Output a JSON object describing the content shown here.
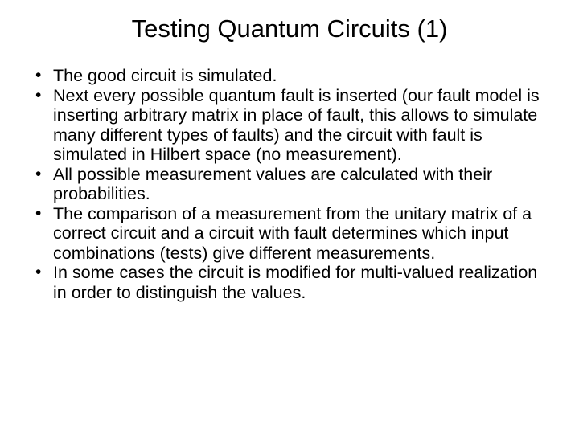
{
  "title": "Testing Quantum Circuits (1)",
  "bullets": [
    "The good circuit is simulated.",
    "Next every possible quantum fault is inserted (our fault model is inserting arbitrary matrix in place of fault, this allows to simulate many different types of faults) and the circuit with fault is simulated in Hilbert space (no measurement).",
    "All possible measurement values are calculated with their probabilities.",
    "The comparison of a measurement from the unitary matrix of a correct circuit and a circuit with fault determines which input combinations (tests) give different measurements.",
    "In some cases the circuit is modified for multi-valued realization in order to distinguish the values."
  ],
  "styling": {
    "background_color": "#ffffff",
    "text_color": "#000000",
    "font_family": "Arial",
    "title_fontsize": 31,
    "title_align": "center",
    "body_fontsize": 21.5,
    "line_height": 1.14,
    "slide_width": 720,
    "slide_height": 540,
    "bullet_marker": "•"
  }
}
